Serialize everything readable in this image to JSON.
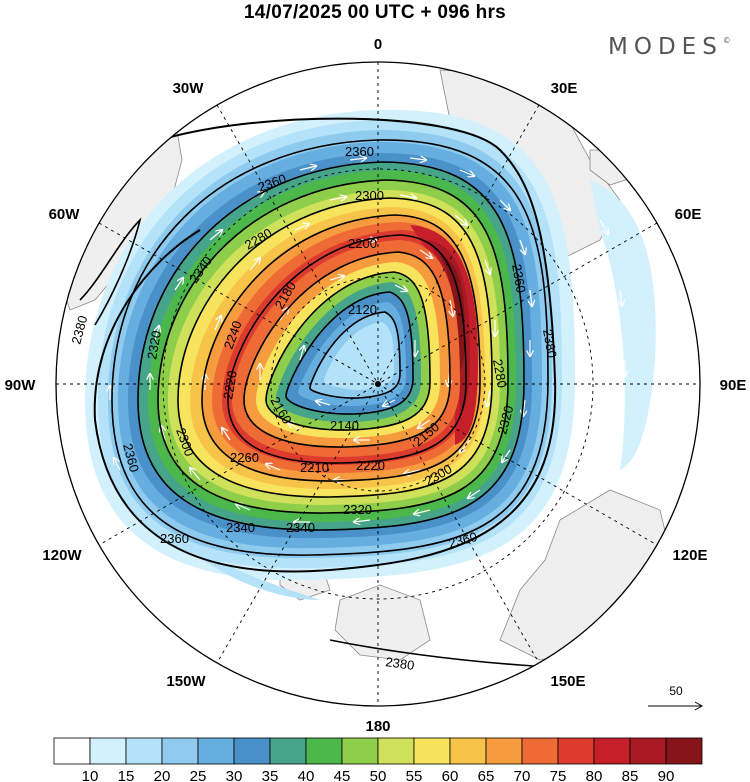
{
  "title": "14/07/2025  00 UTC  + 096 hrs",
  "brand": {
    "name": "MODES",
    "mark": "©"
  },
  "longitude_labels": {
    "n0": "0",
    "n30e": "30E",
    "n60e": "60E",
    "n90e": "90E",
    "n120e": "120E",
    "n150e": "150E",
    "n180": "180",
    "n150w": "150W",
    "n120w": "120W",
    "n90w": "90W",
    "n60w": "60W",
    "n30w": "30W"
  },
  "contour_labels": [
    "2120",
    "2140",
    "2150",
    "2160",
    "2180",
    "2200",
    "2210",
    "2220",
    "2240",
    "2260",
    "2280",
    "2300",
    "2320",
    "2340",
    "2360",
    "2380"
  ],
  "colorbar": {
    "ticks": [
      "10",
      "15",
      "20",
      "25",
      "30",
      "35",
      "40",
      "45",
      "50",
      "55",
      "60",
      "65",
      "70",
      "75",
      "80",
      "85",
      "90"
    ],
    "colors": [
      "#ffffff",
      "#d3f1fd",
      "#b4e2f8",
      "#8ecbee",
      "#66aedf",
      "#4a90c9",
      "#45a48a",
      "#4cb84c",
      "#8fce4a",
      "#cfe15a",
      "#f8e35c",
      "#f8c349",
      "#f79c3e",
      "#ef6b36",
      "#dd3b2d",
      "#c41f2a",
      "#a71a24",
      "#861419"
    ]
  },
  "reference_vector": {
    "label": "50"
  },
  "icons": {
    "pole": "pole-dot-icon",
    "arrow": "reference-arrow-icon"
  }
}
